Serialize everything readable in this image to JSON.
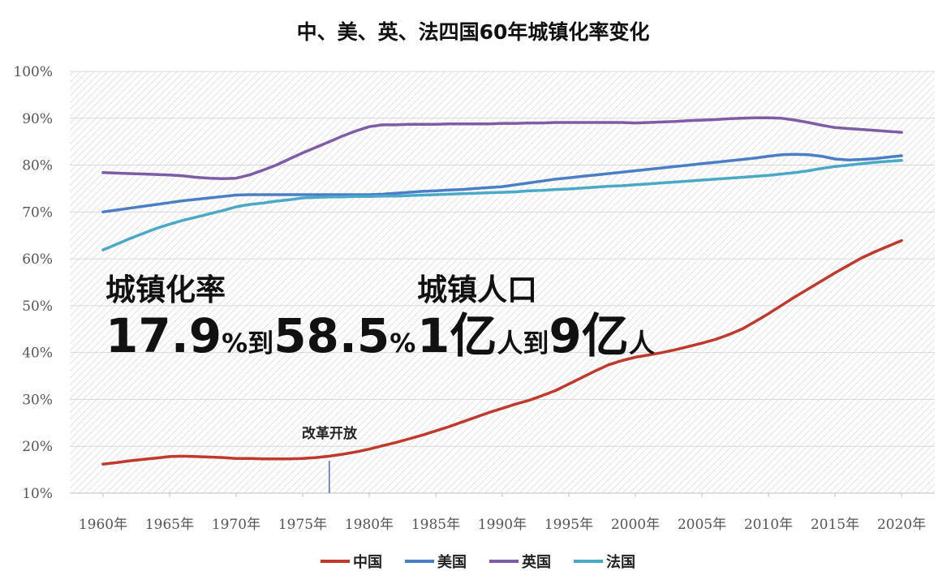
{
  "chart_data": {
    "type": "line",
    "title": "中、美、英、法四国60年城镇化率变化",
    "xlabel": "",
    "ylabel": "",
    "categories": [
      "1960年",
      "1965年",
      "1970年",
      "1975年",
      "1980年",
      "1985年",
      "1990年",
      "1995年",
      "2000年",
      "2005年",
      "2010年",
      "2015年",
      "2020年"
    ],
    "x": [
      1960,
      1961,
      1962,
      1963,
      1964,
      1965,
      1966,
      1967,
      1968,
      1969,
      1970,
      1971,
      1972,
      1973,
      1974,
      1975,
      1976,
      1977,
      1978,
      1979,
      1980,
      1981,
      1982,
      1983,
      1984,
      1985,
      1986,
      1987,
      1988,
      1989,
      1990,
      1991,
      1992,
      1993,
      1994,
      1995,
      1996,
      1997,
      1998,
      1999,
      2000,
      2001,
      2002,
      2003,
      2004,
      2005,
      2006,
      2007,
      2008,
      2009,
      2010,
      2011,
      2012,
      2013,
      2014,
      2015,
      2016,
      2017,
      2018,
      2019,
      2020
    ],
    "yticks": [
      "10%",
      "20%",
      "30%",
      "40%",
      "50%",
      "60%",
      "70%",
      "80%",
      "90%",
      "100%"
    ],
    "ylim": [
      10,
      100
    ],
    "grid": true,
    "legend_position": "bottom",
    "series": [
      {
        "name": "中国",
        "color": "#c0392b",
        "values": [
          16.2,
          16.5,
          16.9,
          17.2,
          17.5,
          17.8,
          17.9,
          17.8,
          17.7,
          17.6,
          17.4,
          17.4,
          17.3,
          17.3,
          17.3,
          17.4,
          17.6,
          17.9,
          18.3,
          18.8,
          19.4,
          20.1,
          20.8,
          21.6,
          22.4,
          23.3,
          24.2,
          25.2,
          26.2,
          27.2,
          28.1,
          29.0,
          29.8,
          30.8,
          31.9,
          33.3,
          34.7,
          36.1,
          37.4,
          38.3,
          39.0,
          39.5,
          40.0,
          40.6,
          41.3,
          42.0,
          42.8,
          43.8,
          45.0,
          46.6,
          48.3,
          50.1,
          51.9,
          53.6,
          55.3,
          57.0,
          58.6,
          60.2,
          61.5,
          62.7,
          63.9
        ]
      },
      {
        "name": "美国",
        "color": "#4a7fc7",
        "values": [
          70.0,
          70.4,
          70.8,
          71.2,
          71.6,
          72.0,
          72.4,
          72.7,
          73.0,
          73.3,
          73.6,
          73.7,
          73.7,
          73.7,
          73.7,
          73.7,
          73.7,
          73.7,
          73.7,
          73.7,
          73.7,
          73.8,
          74.0,
          74.2,
          74.4,
          74.5,
          74.7,
          74.8,
          75.0,
          75.2,
          75.4,
          75.8,
          76.2,
          76.6,
          77.0,
          77.3,
          77.6,
          77.9,
          78.2,
          78.5,
          78.8,
          79.1,
          79.4,
          79.7,
          80.0,
          80.3,
          80.6,
          80.9,
          81.2,
          81.5,
          81.9,
          82.2,
          82.3,
          82.2,
          81.9,
          81.3,
          81.1,
          81.2,
          81.4,
          81.7,
          82.0
        ]
      },
      {
        "name": "英国",
        "color": "#7e5ca8",
        "values": [
          78.4,
          78.3,
          78.2,
          78.1,
          78.0,
          77.9,
          77.7,
          77.4,
          77.2,
          77.1,
          77.2,
          77.9,
          78.9,
          80.0,
          81.3,
          82.6,
          83.8,
          85.0,
          86.2,
          87.3,
          88.2,
          88.6,
          88.6,
          88.7,
          88.7,
          88.7,
          88.8,
          88.8,
          88.8,
          88.8,
          88.9,
          88.9,
          89.0,
          89.0,
          89.1,
          89.1,
          89.1,
          89.1,
          89.1,
          89.1,
          89.0,
          89.1,
          89.2,
          89.3,
          89.5,
          89.6,
          89.7,
          89.9,
          90.0,
          90.1,
          90.1,
          90.0,
          89.6,
          89.1,
          88.5,
          88.0,
          87.8,
          87.6,
          87.4,
          87.2,
          87.0
        ]
      },
      {
        "name": "法国",
        "color": "#4aa8c9",
        "values": [
          61.9,
          63.1,
          64.3,
          65.4,
          66.5,
          67.4,
          68.2,
          68.9,
          69.6,
          70.3,
          71.1,
          71.6,
          71.9,
          72.3,
          72.6,
          73.0,
          73.1,
          73.2,
          73.2,
          73.3,
          73.3,
          73.4,
          73.4,
          73.5,
          73.6,
          73.7,
          73.8,
          73.9,
          74.0,
          74.1,
          74.2,
          74.3,
          74.5,
          74.6,
          74.8,
          74.9,
          75.1,
          75.3,
          75.5,
          75.6,
          75.8,
          76.0,
          76.2,
          76.4,
          76.6,
          76.8,
          77.0,
          77.2,
          77.4,
          77.6,
          77.8,
          78.1,
          78.4,
          78.8,
          79.3,
          79.7,
          80.0,
          80.3,
          80.6,
          80.8,
          81.0
        ]
      }
    ],
    "annotations": {
      "rate_heading": "城镇化率",
      "rate_from": "17.9",
      "rate_pct1": "%",
      "rate_to": "到",
      "rate_end": "58.5",
      "rate_pct2": "%",
      "pop_heading": "城镇人口",
      "pop_from": "1",
      "pop_unit1": "亿",
      "pop_person1": "人",
      "pop_to": "到",
      "pop_end": "9",
      "pop_unit2": "亿",
      "pop_person2": "人",
      "marker_label": "改革开放",
      "marker_year": 1977
    }
  }
}
